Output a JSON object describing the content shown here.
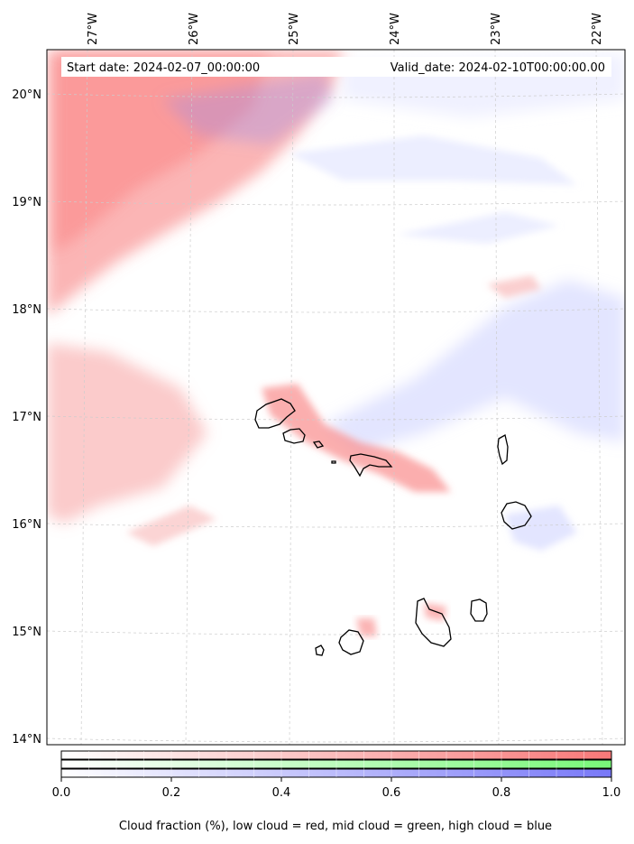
{
  "header": {
    "start_date": "Start date: 2024-02-07_00:00:00",
    "valid_date": "Valid_date: 2024-02-10T00:00:00.00"
  },
  "map": {
    "lon_ticks": [
      "27°W",
      "26°W",
      "25°W",
      "24°W",
      "23°W",
      "22°W"
    ],
    "lat_ticks": [
      "20°N",
      "19°N",
      "18°N",
      "17°N",
      "16°N",
      "15°N",
      "14°N"
    ],
    "gridlines": true
  },
  "colorbar": {
    "min": 0.0,
    "max": 1.0,
    "ticks": [
      "0.0",
      "0.2",
      "0.4",
      "0.6",
      "0.8",
      "1.0"
    ],
    "bands": [
      {
        "layer": "low",
        "color": "#f87878"
      },
      {
        "layer": "mid",
        "color": "#78f878"
      },
      {
        "layer": "high",
        "color": "#7878f8"
      }
    ],
    "caption": "Cloud fraction (%), low cloud = red, mid cloud = green, high cloud = blue"
  }
}
